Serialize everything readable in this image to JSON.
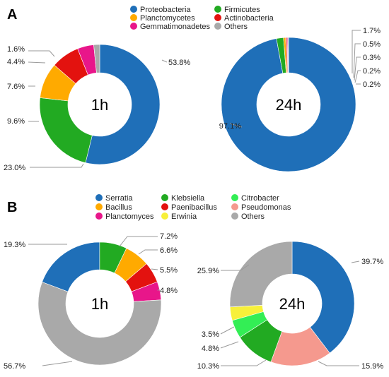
{
  "panels": [
    {
      "label": "A",
      "legend": [
        {
          "name": "Proteobacteria",
          "color": "#1f6fb8"
        },
        {
          "name": "Firmicutes",
          "color": "#22aa22"
        },
        {
          "name": "Planctomycetes",
          "color": "#ffaa00"
        },
        {
          "name": "Actinobacteria",
          "color": "#e3120f"
        },
        {
          "name": "Gemmatimonadetes",
          "color": "#e8168a"
        },
        {
          "name": "Others",
          "color": "#a9a9a9"
        }
      ]
    },
    {
      "label": "B",
      "legend": [
        {
          "name": "Serratia",
          "color": "#1f6fb8"
        },
        {
          "name": "Klebsiella",
          "color": "#22aa22"
        },
        {
          "name": "Citrobacter",
          "color": "#33ee55"
        },
        {
          "name": "Bacillus",
          "color": "#ffaa00"
        },
        {
          "name": "Paenibacillus",
          "color": "#e3120f"
        },
        {
          "name": "Pseudomonas",
          "color": "#f5998e"
        },
        {
          "name": "Planctomyces",
          "color": "#e8168a"
        },
        {
          "name": "Erwinia",
          "color": "#f7f03a"
        },
        {
          "name": "Others",
          "color": "#a9a9a9"
        }
      ]
    }
  ],
  "chart_data": [
    {
      "type": "pie",
      "subtype": "donut",
      "center_label": "1h",
      "slices": [
        {
          "category": "Proteobacteria",
          "value": 53.8,
          "label": "53.8%",
          "color": "#1f6fb8"
        },
        {
          "category": "Firmicutes",
          "value": 23.0,
          "label": "23.0%",
          "color": "#22aa22"
        },
        {
          "category": "Planctomycetes",
          "value": 9.6,
          "label": "9.6%",
          "color": "#ffaa00"
        },
        {
          "category": "Actinobacteria",
          "value": 7.6,
          "label": "7.6%",
          "color": "#e3120f"
        },
        {
          "category": "Gemmatimonadetes",
          "value": 4.4,
          "label": "4.4%",
          "color": "#e8168a"
        },
        {
          "category": "Others",
          "value": 1.6,
          "label": "1.6%",
          "color": "#a9a9a9"
        }
      ]
    },
    {
      "type": "pie",
      "subtype": "donut",
      "center_label": "24h",
      "slices": [
        {
          "category": "Proteobacteria",
          "value": 97.1,
          "label": "97.1%",
          "color": "#1f6fb8"
        },
        {
          "category": "Firmicutes",
          "value": 1.7,
          "label": "1.7%",
          "color": "#22aa22"
        },
        {
          "category": "Planctomycetes",
          "value": 0.5,
          "label": "0.5%",
          "color": "#ffaa00"
        },
        {
          "category": "Actinobacteria",
          "value": 0.3,
          "label": "0.3%",
          "color": "#e3120f"
        },
        {
          "category": "Gemmatimonadetes",
          "value": 0.2,
          "label": "0.2%",
          "color": "#e8168a"
        },
        {
          "category": "Others",
          "value": 0.2,
          "label": "0.2%",
          "color": "#a9a9a9"
        }
      ]
    },
    {
      "type": "pie",
      "subtype": "donut",
      "center_label": "1h",
      "slices": [
        {
          "category": "Serratia",
          "value": 19.3,
          "label": "19.3%",
          "color": "#1f6fb8"
        },
        {
          "category": "Klebsiella",
          "value": 7.2,
          "label": "7.2%",
          "color": "#22aa22"
        },
        {
          "category": "Bacillus",
          "value": 6.6,
          "label": "6.6%",
          "color": "#ffaa00"
        },
        {
          "category": "Paenibacillus",
          "value": 5.5,
          "label": "5.5%",
          "color": "#e3120f"
        },
        {
          "category": "Planctomyces",
          "value": 4.8,
          "label": "4.8%",
          "color": "#e8168a"
        },
        {
          "category": "Others",
          "value": 56.7,
          "label": "56.7%",
          "color": "#a9a9a9"
        }
      ]
    },
    {
      "type": "pie",
      "subtype": "donut",
      "center_label": "24h",
      "slices": [
        {
          "category": "Serratia",
          "value": 39.7,
          "label": "39.7%",
          "color": "#1f6fb8"
        },
        {
          "category": "Pseudomonas",
          "value": 15.9,
          "label": "15.9%",
          "color": "#f5998e"
        },
        {
          "category": "Klebsiella",
          "value": 10.3,
          "label": "10.3%",
          "color": "#22aa22"
        },
        {
          "category": "Citrobacter",
          "value": 4.8,
          "label": "4.8%",
          "color": "#33ee55"
        },
        {
          "category": "Erwinia",
          "value": 3.5,
          "label": "3.5%",
          "color": "#f7f03a"
        },
        {
          "category": "Others",
          "value": 25.9,
          "label": "25.9%",
          "color": "#a9a9a9"
        }
      ]
    }
  ]
}
